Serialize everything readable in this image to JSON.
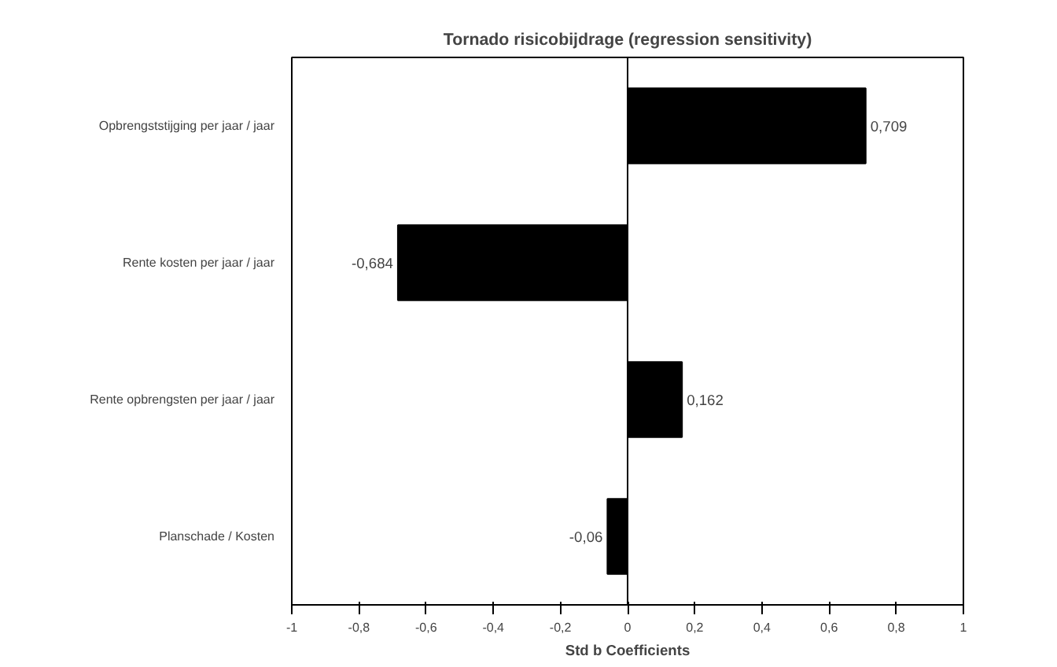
{
  "chart_data": {
    "type": "bar",
    "orientation": "horizontal",
    "title": "Tornado risicobijdrage (regression sensitivity)",
    "xlabel": "Std b Coefficients",
    "categories": [
      "Opbrengststijging per jaar / jaar",
      "Rente kosten per jaar / jaar",
      "Rente opbrengsten per jaar / jaar",
      "Planschade / Kosten"
    ],
    "values": [
      0.709,
      -0.684,
      0.162,
      -0.06
    ],
    "value_labels": [
      "0,709",
      "-0,684",
      "0,162",
      "-0,06"
    ],
    "color": "#000000",
    "xlim": [
      -1,
      1
    ],
    "xticks": [
      {
        "value": -1,
        "label": "-1"
      },
      {
        "value": -0.8,
        "label": "-0,8"
      },
      {
        "value": -0.6,
        "label": "-0,6"
      },
      {
        "value": -0.4,
        "label": "-0,4"
      },
      {
        "value": -0.2,
        "label": "-0,2"
      },
      {
        "value": 0,
        "label": "0"
      },
      {
        "value": 0.2,
        "label": "0,2"
      },
      {
        "value": 0.4,
        "label": "0,4"
      },
      {
        "value": 0.6,
        "label": "0,6"
      },
      {
        "value": 0.8,
        "label": "0,8"
      },
      {
        "value": 1,
        "label": "1"
      }
    ],
    "ref_lines": [
      {
        "axis": "x",
        "value": 0
      }
    ],
    "grid": false
  }
}
